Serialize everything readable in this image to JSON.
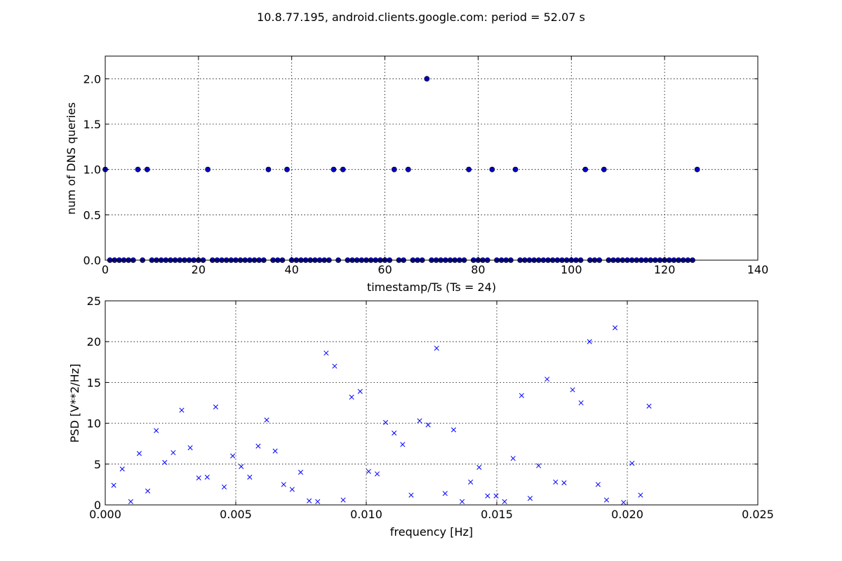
{
  "figure": {
    "title": "10.8.77.195, android.clients.google.com: period = 52.07 s"
  },
  "chart_data": [
    {
      "type": "scatter",
      "marker": "circle",
      "color": "#0000bf",
      "xlabel": "timestamp/Ts (Ts = 24)",
      "ylabel": "num of DNS queries",
      "xlim": [
        0,
        140
      ],
      "ylim": [
        0,
        2.25
      ],
      "xticks": [
        0,
        20,
        40,
        60,
        80,
        100,
        120,
        140
      ],
      "yticks": [
        0.0,
        0.5,
        1.0,
        1.5,
        2.0
      ],
      "xtick_labels": [
        "0",
        "20",
        "40",
        "60",
        "80",
        "100",
        "120",
        "140"
      ],
      "ytick_labels": [
        "0.0",
        "0.5",
        "1.0",
        "1.5",
        "2.0"
      ],
      "grid": true,
      "x": [
        0,
        1,
        2,
        3,
        4,
        5,
        6,
        7,
        8,
        9,
        10,
        11,
        12,
        13,
        14,
        15,
        16,
        17,
        18,
        19,
        20,
        21,
        22,
        23,
        24,
        25,
        26,
        27,
        28,
        29,
        30,
        31,
        32,
        33,
        34,
        35,
        36,
        37,
        38,
        39,
        40,
        41,
        42,
        43,
        44,
        45,
        46,
        47,
        48,
        49,
        50,
        51,
        52,
        53,
        54,
        55,
        56,
        57,
        58,
        59,
        60,
        61,
        62,
        63,
        64,
        65,
        66,
        67,
        68,
        69,
        70,
        71,
        72,
        73,
        74,
        75,
        76,
        77,
        78,
        79,
        80,
        81,
        82,
        83,
        84,
        85,
        86,
        87,
        88,
        89,
        90,
        91,
        92,
        93,
        94,
        95,
        96,
        97,
        98,
        99,
        100,
        101,
        102,
        103,
        104,
        105,
        106,
        107,
        108,
        109,
        110,
        111,
        112,
        113,
        114,
        115,
        116,
        117,
        118,
        119,
        120,
        121,
        122,
        123,
        124,
        125,
        126,
        127
      ],
      "y": [
        1,
        0,
        0,
        0,
        0,
        0,
        0,
        1,
        0,
        1,
        0,
        0,
        0,
        0,
        0,
        0,
        0,
        0,
        0,
        0,
        0,
        0,
        1,
        0,
        0,
        0,
        0,
        0,
        0,
        0,
        0,
        0,
        0,
        0,
        0,
        1,
        0,
        0,
        0,
        1,
        0,
        0,
        0,
        0,
        0,
        0,
        0,
        0,
        0,
        1,
        0,
        1,
        0,
        0,
        0,
        0,
        0,
        0,
        0,
        0,
        0,
        0,
        1,
        0,
        0,
        1,
        0,
        0,
        0,
        2,
        0,
        0,
        0,
        0,
        0,
        0,
        0,
        0,
        1,
        0,
        0,
        0,
        0,
        1,
        0,
        0,
        0,
        0,
        1,
        0,
        0,
        0,
        0,
        0,
        0,
        0,
        0,
        0,
        0,
        0,
        0,
        0,
        0,
        1,
        0,
        0,
        0,
        1,
        0,
        0,
        0,
        0,
        0,
        0,
        0,
        0,
        0,
        0,
        0,
        0,
        0,
        0,
        0,
        0,
        0,
        0,
        0,
        1
      ]
    },
    {
      "type": "scatter",
      "marker": "x",
      "color": "#0000ff",
      "xlabel": "frequency [Hz]",
      "ylabel": "PSD [V**2/Hz]",
      "xlim": [
        0,
        0.025
      ],
      "ylim": [
        0,
        25
      ],
      "xticks": [
        0.0,
        0.005,
        0.01,
        0.015,
        0.02,
        0.025
      ],
      "yticks": [
        0,
        5,
        10,
        15,
        20,
        25
      ],
      "xtick_labels": [
        "0.000",
        "0.005",
        "0.010",
        "0.015",
        "0.020",
        "0.025"
      ],
      "ytick_labels": [
        "0",
        "5",
        "10",
        "15",
        "20",
        "25"
      ],
      "grid": true,
      "x": [
        0.000326,
        0.000651,
        0.000977,
        0.001302,
        0.001628,
        0.001953,
        0.002279,
        0.002604,
        0.00293,
        0.003255,
        0.003581,
        0.003906,
        0.004232,
        0.004557,
        0.004883,
        0.005208,
        0.005534,
        0.005859,
        0.006185,
        0.00651,
        0.006836,
        0.007161,
        0.007487,
        0.007813,
        0.008138,
        0.008464,
        0.008789,
        0.009115,
        0.00944,
        0.009766,
        0.010091,
        0.010417,
        0.010742,
        0.011068,
        0.011393,
        0.011719,
        0.012044,
        0.01237,
        0.012695,
        0.013021,
        0.013346,
        0.013672,
        0.013997,
        0.014323,
        0.014648,
        0.014974,
        0.015299,
        0.015625,
        0.015951,
        0.016276,
        0.016602,
        0.016927,
        0.017253,
        0.017578,
        0.017904,
        0.018229,
        0.018555,
        0.01888,
        0.019206,
        0.019531,
        0.019857,
        0.020182,
        0.020508,
        0.020833
      ],
      "y": [
        2.4,
        4.4,
        0.4,
        6.3,
        1.7,
        9.1,
        5.2,
        6.4,
        11.6,
        7.0,
        3.3,
        3.4,
        12.0,
        2.2,
        6.0,
        4.7,
        3.4,
        7.2,
        10.4,
        6.6,
        2.5,
        1.9,
        4.0,
        0.5,
        0.4,
        18.6,
        17.0,
        0.6,
        13.2,
        13.9,
        4.1,
        3.8,
        10.1,
        8.8,
        7.4,
        1.2,
        10.3,
        9.8,
        19.2,
        1.4,
        9.2,
        0.4,
        2.8,
        4.6,
        1.1,
        1.1,
        0.4,
        5.7,
        13.4,
        0.8,
        4.8,
        15.4,
        2.8,
        2.7,
        14.1,
        12.5,
        20.0,
        2.5,
        0.6,
        21.7,
        0.3,
        5.1,
        1.2,
        12.1
      ]
    }
  ]
}
